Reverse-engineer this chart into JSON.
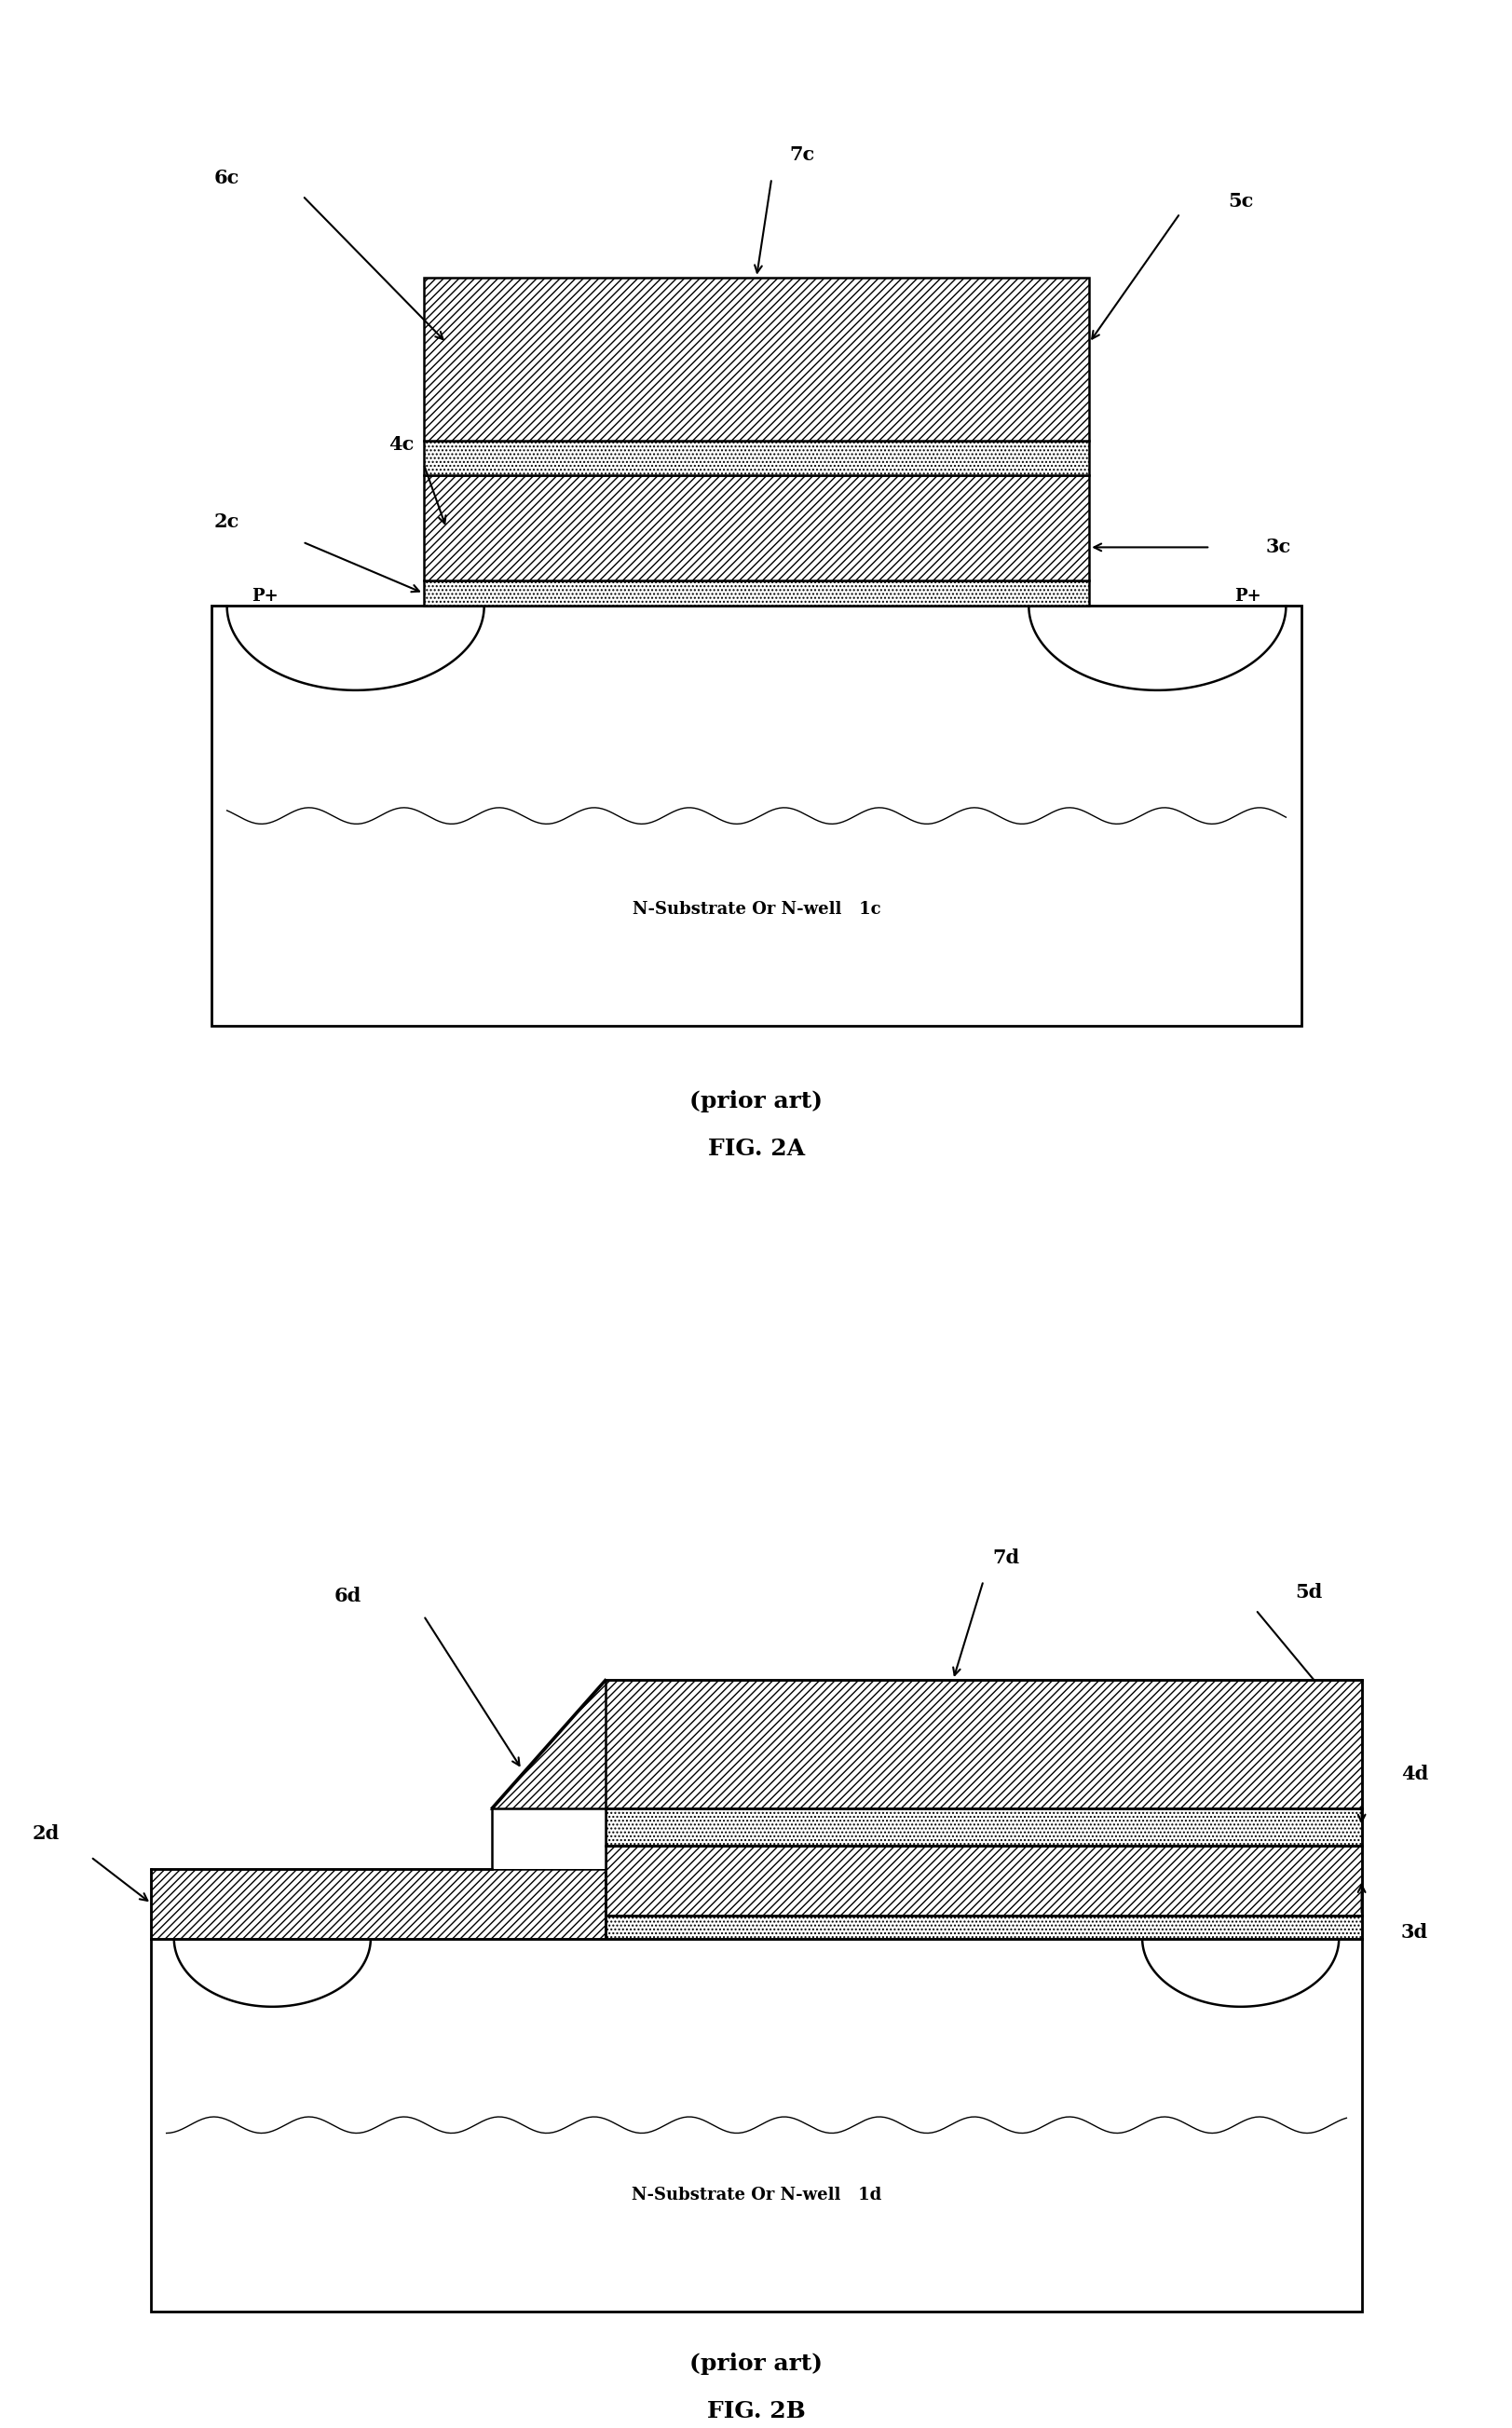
{
  "fig_width": 16.24,
  "fig_height": 26.06,
  "bg_color": "#ffffff",
  "figA": {
    "sub_label": "N-Substrate Or N-well   1c",
    "labels": [
      "1c",
      "2c",
      "3c",
      "4c",
      "5c",
      "6c",
      "7c"
    ]
  },
  "figB": {
    "sub_label": "N-Substrate Or N-well   1d",
    "labels": [
      "1d",
      "2d",
      "3d",
      "4d",
      "5d",
      "6d",
      "7d"
    ]
  }
}
